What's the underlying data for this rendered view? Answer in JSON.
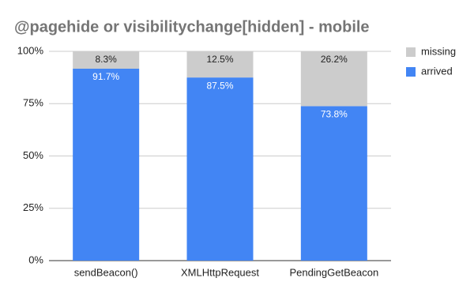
{
  "chart_data": {
    "type": "stacked_bar",
    "title": "@pagehide or visibilitychange[hidden] - mobile",
    "categories": [
      "sendBeacon()",
      "XMLHttpRequest",
      "PendingGetBeacon"
    ],
    "series": [
      {
        "name": "arrived",
        "color": "#4285f4",
        "values": [
          91.7,
          87.5,
          73.8
        ],
        "value_labels": [
          "91.7%",
          "87.5%",
          "73.8%"
        ]
      },
      {
        "name": "missing",
        "color": "#cccccc",
        "values": [
          8.3,
          12.5,
          26.2
        ],
        "value_labels": [
          "8.3%",
          "12.5%",
          "26.2%"
        ]
      }
    ],
    "ylim": [
      0,
      100
    ],
    "yticks": [
      {
        "value": 0,
        "label": "0%"
      },
      {
        "value": 25,
        "label": "25%"
      },
      {
        "value": 50,
        "label": "50%"
      },
      {
        "value": 75,
        "label": "75%"
      },
      {
        "value": 100,
        "label": "100%"
      }
    ],
    "grid": true,
    "legend": "right"
  }
}
